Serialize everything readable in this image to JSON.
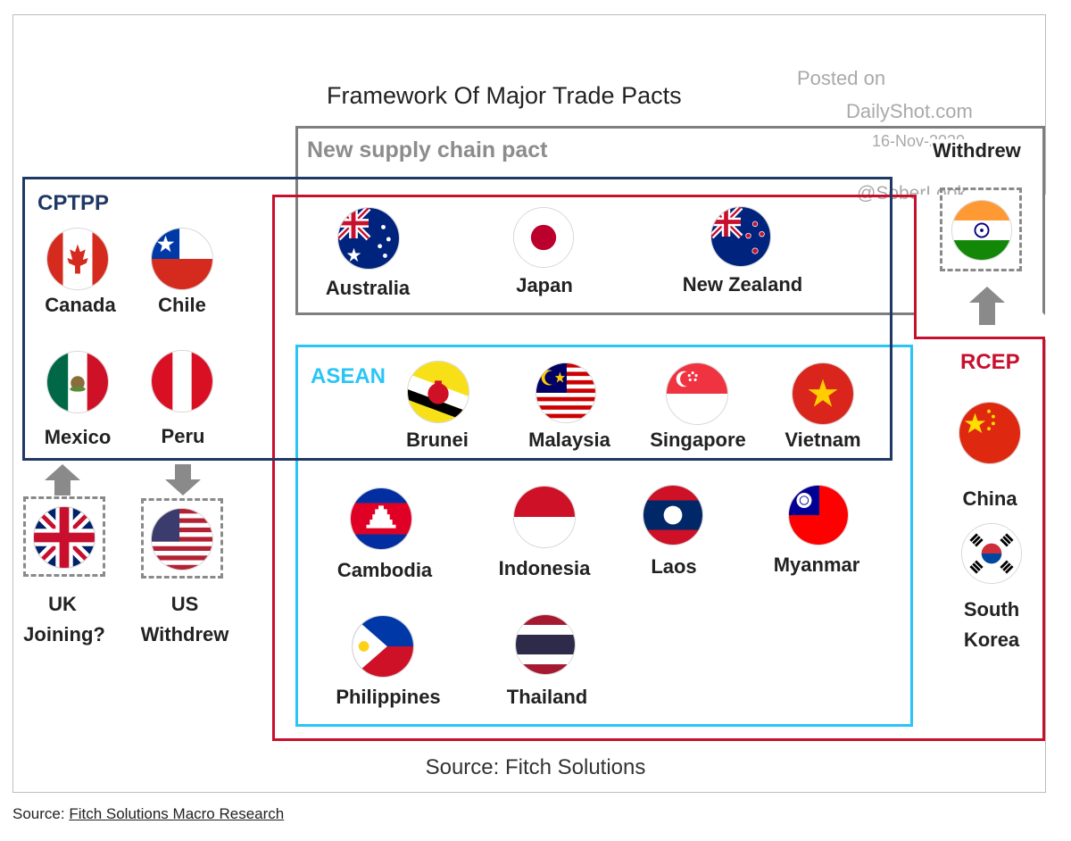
{
  "title": "Framework Of Major Trade Pacts",
  "watermark": {
    "line1": "Posted on",
    "line2": "DailyShot.com",
    "line3": "16-Nov-2020",
    "line4": "@SoberLook"
  },
  "groups": {
    "new_supply_chain": {
      "label": "New supply chain pact",
      "color": "#7f7f7f"
    },
    "cptpp": {
      "label": "CPTPP",
      "color": "#1f3864"
    },
    "rcep": {
      "label": "RCEP",
      "color": "#c8102e"
    },
    "asean": {
      "label": "ASEAN",
      "color": "#29c5f6"
    },
    "withdrew_label": "Withdrew"
  },
  "countries": {
    "canada": "Canada",
    "chile": "Chile",
    "mexico": "Mexico",
    "peru": "Peru",
    "australia": "Australia",
    "japan": "Japan",
    "new_zealand": "New Zealand",
    "india_label": "",
    "brunei": "Brunei",
    "malaysia": "Malaysia",
    "singapore": "Singapore",
    "vietnam": "Vietnam",
    "cambodia": "Cambodia",
    "indonesia": "Indonesia",
    "laos": "Laos",
    "myanmar": "Myanmar",
    "philippines": "Philippines",
    "thailand": "Thailand",
    "china": "China",
    "south_korea_1": "South",
    "south_korea_2": "Korea",
    "uk_1": "UK",
    "uk_2": "Joining?",
    "us_1": "US",
    "us_2": "Withdrew"
  },
  "source_inner": "Source: Fitch Solutions",
  "source_outer": {
    "prefix": "Source: ",
    "link": "Fitch Solutions Macro Research"
  }
}
